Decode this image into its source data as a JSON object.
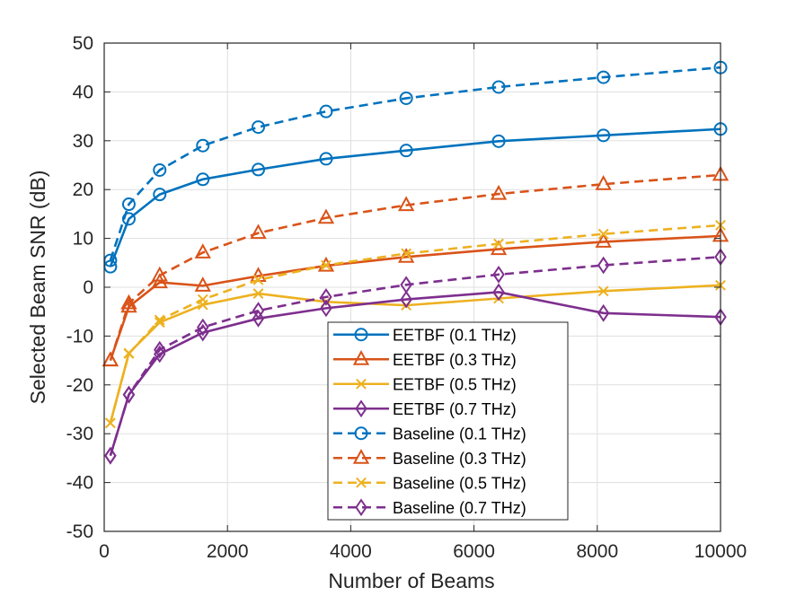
{
  "chart_data": {
    "type": "line",
    "title": "",
    "xlabel": "Number of Beams",
    "ylabel": "Selected Beam SNR (dB)",
    "xlim": [
      0,
      10000
    ],
    "ylim": [
      -50,
      50
    ],
    "xticks": [
      0,
      2000,
      4000,
      6000,
      8000,
      10000
    ],
    "yticks": [
      -50,
      -40,
      -30,
      -20,
      -10,
      0,
      10,
      20,
      30,
      40,
      50
    ],
    "grid": true,
    "legend_position": "lower-center",
    "x": [
      100,
      400,
      900,
      1600,
      2500,
      3600,
      4900,
      6400,
      8100,
      10000
    ],
    "series": [
      {
        "name": "EETBF (0.1 THz)",
        "color": "#0072BD",
        "line_style": "solid",
        "marker": "circle",
        "values": [
          4.2,
          14.0,
          19.0,
          22.1,
          24.1,
          26.3,
          28.0,
          29.9,
          31.1,
          32.4
        ]
      },
      {
        "name": "EETBF (0.3 THz)",
        "color": "#D95319",
        "line_style": "solid",
        "marker": "triangle",
        "values": [
          -15.0,
          -4.0,
          1.0,
          0.3,
          2.3,
          4.4,
          6.2,
          7.8,
          9.3,
          10.5
        ]
      },
      {
        "name": "EETBF (0.5 THz)",
        "color": "#EDB120",
        "line_style": "solid",
        "marker": "x",
        "values": [
          -27.8,
          -13.5,
          -7.2,
          -3.6,
          -1.3,
          -3.0,
          -3.7,
          -2.3,
          -0.8,
          0.4
        ]
      },
      {
        "name": "EETBF (0.7 THz)",
        "color": "#7E2F8E",
        "line_style": "solid",
        "marker": "diamond",
        "values": [
          -34.5,
          -22.0,
          -13.7,
          -9.3,
          -6.4,
          -4.3,
          -2.5,
          -1.0,
          -5.3,
          -6.1
        ]
      },
      {
        "name": "Baseline (0.1 THz)",
        "color": "#0072BD",
        "line_style": "dashed",
        "marker": "circle",
        "values": [
          5.5,
          17.0,
          24.0,
          29.0,
          32.8,
          36.0,
          38.7,
          41.0,
          43.0,
          45.0
        ]
      },
      {
        "name": "Baseline (0.3 THz)",
        "color": "#D95319",
        "line_style": "dashed",
        "marker": "triangle",
        "values": [
          -15.0,
          -3.3,
          2.4,
          7.1,
          11.1,
          14.2,
          16.8,
          19.1,
          21.1,
          23.0
        ]
      },
      {
        "name": "Baseline (0.5 THz)",
        "color": "#EDB120",
        "line_style": "dashed",
        "marker": "x",
        "values": [
          -27.8,
          -13.6,
          -6.7,
          -2.5,
          1.5,
          4.5,
          6.9,
          8.9,
          10.9,
          12.7
        ]
      },
      {
        "name": "Baseline (0.7 THz)",
        "color": "#7E2F8E",
        "line_style": "dashed",
        "marker": "diamond",
        "values": [
          -34.5,
          -22.0,
          -12.8,
          -8.2,
          -4.8,
          -2.0,
          0.5,
          2.6,
          4.5,
          6.2
        ]
      }
    ]
  }
}
